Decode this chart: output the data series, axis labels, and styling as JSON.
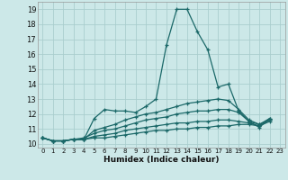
{
  "xlabel": "Humidex (Indice chaleur)",
  "bg_color": "#cce8e8",
  "grid_color": "#aacece",
  "line_color": "#1a6868",
  "xlim": [
    -0.5,
    23.5
  ],
  "ylim": [
    9.75,
    19.5
  ],
  "yticks": [
    10,
    11,
    12,
    13,
    14,
    15,
    16,
    17,
    18,
    19
  ],
  "xtick_labels": [
    "0",
    "1",
    "2",
    "3",
    "4",
    "5",
    "6",
    "7",
    "8",
    "9",
    "10",
    "11",
    "12",
    "13",
    "14",
    "15",
    "16",
    "17",
    "18",
    "19",
    "20",
    "21",
    "22",
    "23"
  ],
  "lines": [
    [
      10.4,
      10.2,
      10.2,
      10.3,
      10.3,
      11.7,
      12.3,
      12.2,
      12.2,
      12.1,
      12.5,
      13.0,
      16.6,
      19.0,
      19.0,
      17.5,
      16.3,
      13.8,
      14.0,
      12.2,
      11.5,
      11.1,
      11.7,
      null
    ],
    [
      10.4,
      10.2,
      10.2,
      10.3,
      10.3,
      10.9,
      11.1,
      11.3,
      11.6,
      11.8,
      12.0,
      12.1,
      12.3,
      12.5,
      12.7,
      12.8,
      12.9,
      13.0,
      12.9,
      12.3,
      11.6,
      11.3,
      11.7,
      null
    ],
    [
      10.4,
      10.2,
      10.2,
      10.3,
      10.4,
      10.7,
      10.9,
      11.0,
      11.2,
      11.4,
      11.6,
      11.7,
      11.8,
      12.0,
      12.1,
      12.2,
      12.2,
      12.3,
      12.3,
      12.1,
      11.5,
      11.3,
      11.6,
      null
    ],
    [
      10.4,
      10.2,
      10.2,
      10.3,
      10.3,
      10.5,
      10.6,
      10.7,
      10.9,
      11.0,
      11.1,
      11.2,
      11.3,
      11.4,
      11.4,
      11.5,
      11.5,
      11.6,
      11.6,
      11.5,
      11.4,
      11.2,
      11.5,
      null
    ],
    [
      10.4,
      10.2,
      10.2,
      10.3,
      10.3,
      10.4,
      10.4,
      10.5,
      10.6,
      10.7,
      10.8,
      10.9,
      10.9,
      11.0,
      11.0,
      11.1,
      11.1,
      11.2,
      11.2,
      11.3,
      11.3,
      11.2,
      11.6,
      null
    ]
  ]
}
